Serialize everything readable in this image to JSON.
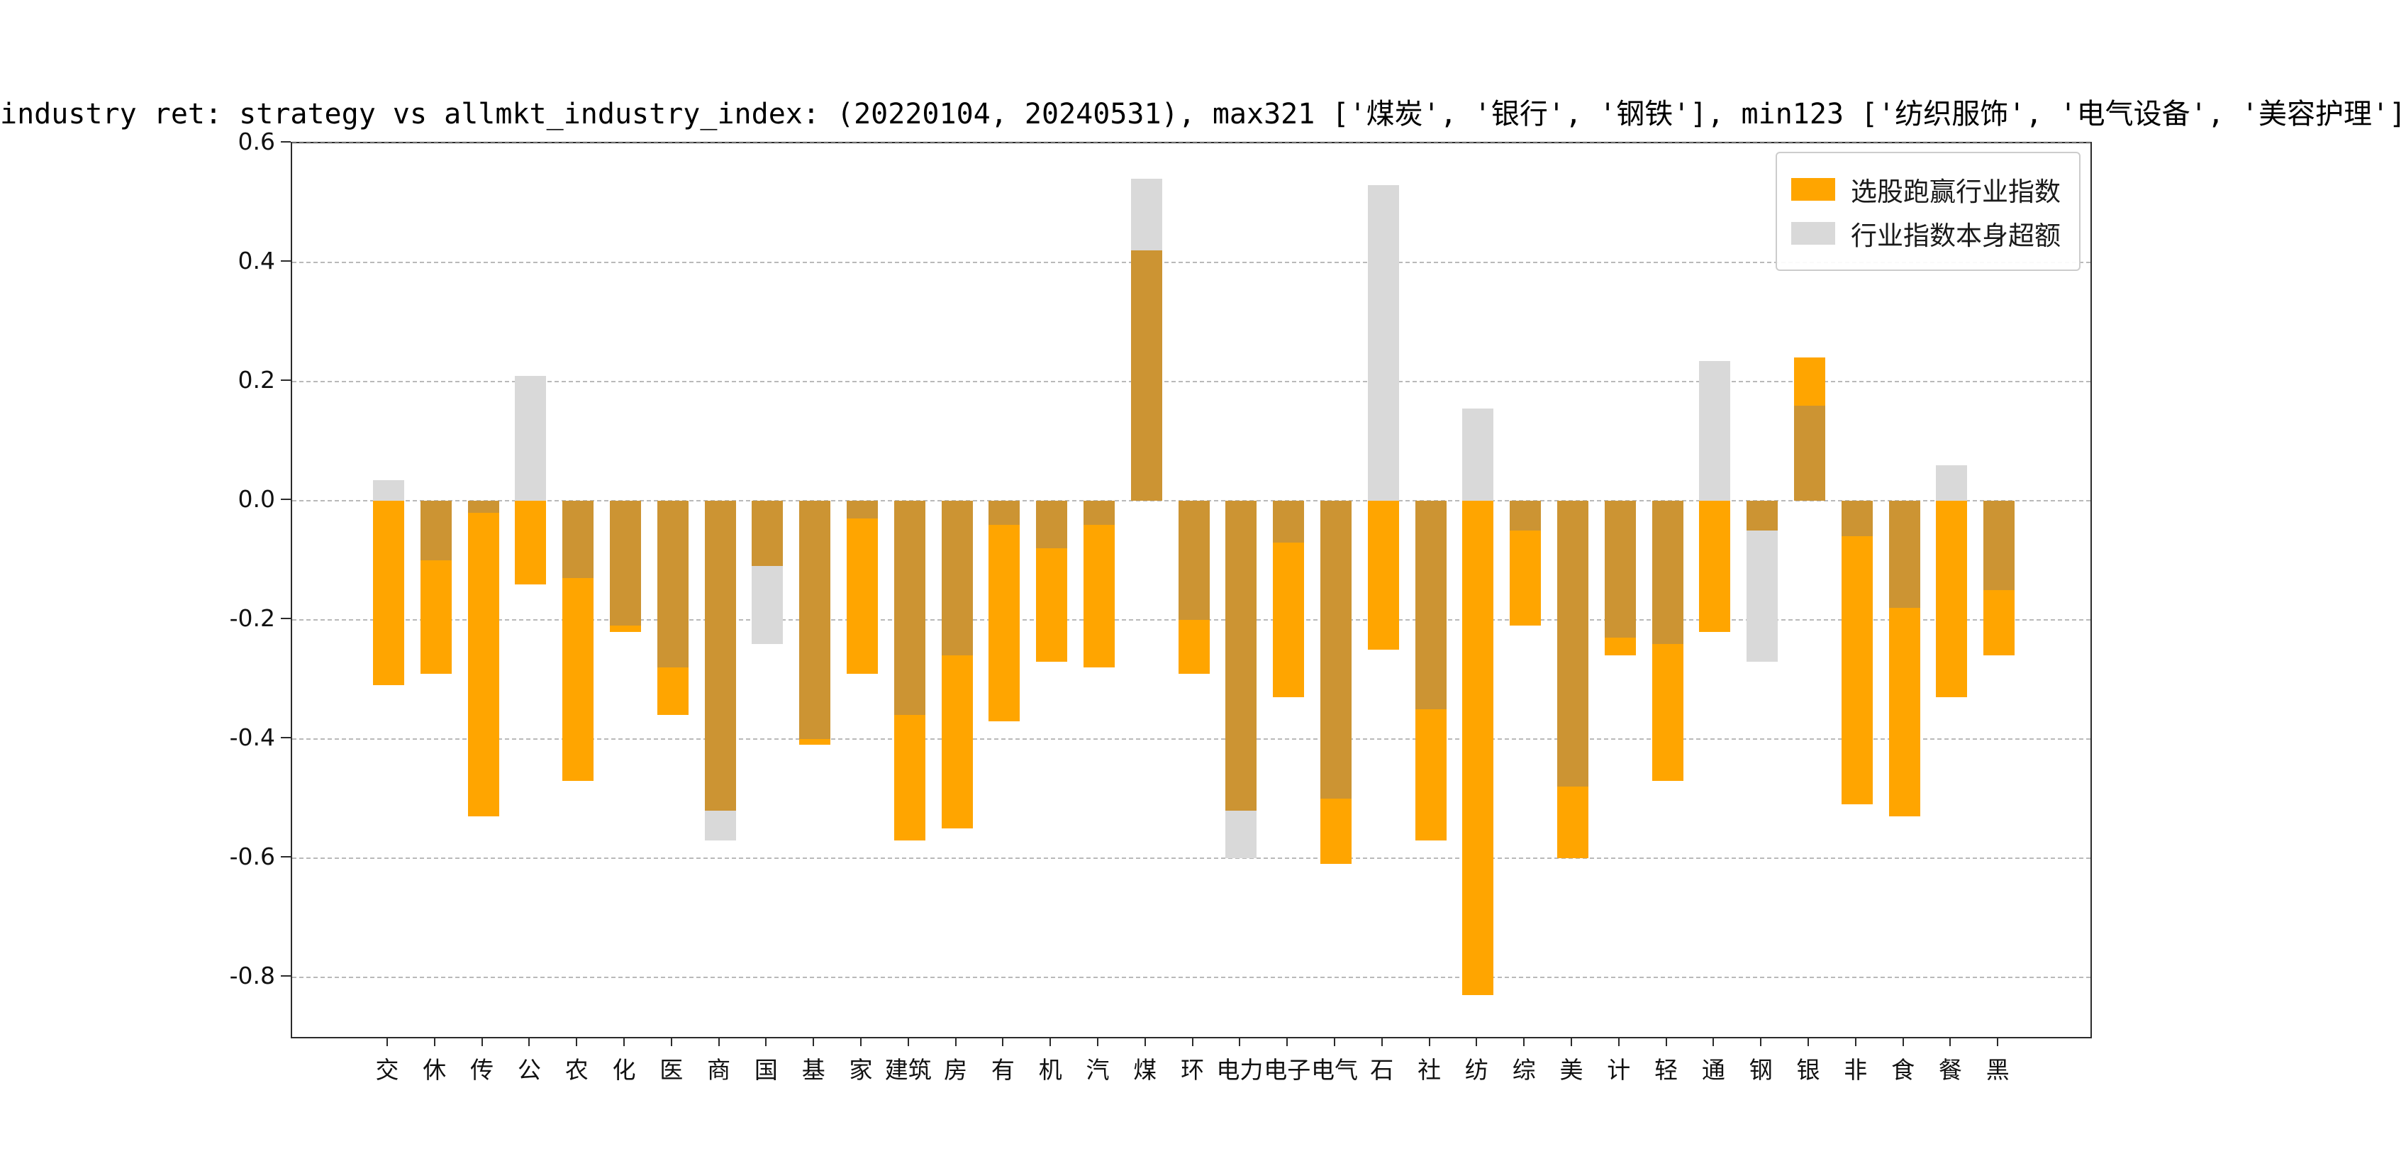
{
  "title": "industry ret: strategy vs allmkt_industry_index: (20220104, 20240531), max321 ['煤炭', '银行', '钢铁'], min123 ['纺织服饰', '电气设备', '美容护理']",
  "legend": {
    "items": [
      {
        "label": "选股跑赢行业指数",
        "color": "#FFA500"
      },
      {
        "label": "行业指数本身超额",
        "color": "#D9D9D9"
      }
    ]
  },
  "axes": {
    "ytick_labels": [
      "0.6",
      "0.4",
      "0.2",
      "0.0",
      "-0.2",
      "-0.4",
      "-0.6",
      "-0.8"
    ]
  },
  "colors": {
    "orange": "#FFA500",
    "gray": "#D9D9D9",
    "overlap": "#CC9433",
    "grid": "#B9B9B9",
    "axis": "#2B2B2B"
  },
  "chart_data": {
    "type": "bar",
    "title": "industry ret: strategy vs allmkt_industry_index: (20220104, 20240531), max321 ['煤炭', '银行', '钢铁'], min123 ['纺织服饰', '电气设备', '美容护理']",
    "categories": [
      "交",
      "休",
      "传",
      "公",
      "农",
      "化",
      "医",
      "商",
      "国",
      "基",
      "家",
      "建筑",
      "房",
      "有",
      "机",
      "汽",
      "煤",
      "环",
      "电力",
      "电子",
      "电气",
      "石",
      "社",
      "纺",
      "综",
      "美",
      "计",
      "轻",
      "通",
      "钢",
      "银",
      "非",
      "食",
      "餐",
      "黑"
    ],
    "series": [
      {
        "name": "选股跑赢行业指数",
        "color": "#FFA500",
        "values": [
          -0.31,
          -0.29,
          -0.53,
          -0.14,
          -0.47,
          -0.22,
          -0.36,
          -0.52,
          -0.11,
          -0.41,
          -0.29,
          -0.57,
          -0.55,
          -0.37,
          -0.27,
          -0.28,
          0.42,
          -0.29,
          -0.52,
          -0.33,
          -0.61,
          -0.25,
          -0.57,
          -0.83,
          -0.21,
          -0.6,
          -0.26,
          -0.47,
          -0.22,
          -0.05,
          0.24,
          -0.51,
          -0.53,
          -0.33,
          -0.26
        ]
      },
      {
        "name": "行业指数本身超额",
        "color": "#D9D9D9",
        "values": [
          0.035,
          -0.1,
          -0.02,
          0.21,
          -0.13,
          -0.21,
          -0.28,
          -0.57,
          -0.24,
          -0.4,
          -0.03,
          -0.36,
          -0.26,
          -0.04,
          -0.08,
          -0.04,
          0.54,
          -0.2,
          -0.6,
          -0.07,
          -0.5,
          0.53,
          -0.35,
          0.155,
          -0.05,
          -0.48,
          -0.23,
          -0.24,
          0.235,
          -0.27,
          0.16,
          -0.06,
          -0.18,
          0.06,
          -0.15
        ]
      }
    ],
    "overlap_color": "#CC9433",
    "ylim": [
      -0.9,
      0.6
    ],
    "yticks": [
      0.6,
      0.4,
      0.2,
      0.0,
      -0.2,
      -0.4,
      -0.6,
      -0.8
    ],
    "xlabel": "",
    "ylabel": "",
    "grid": "dashed-horizontal",
    "legend_position": "upper-right"
  }
}
